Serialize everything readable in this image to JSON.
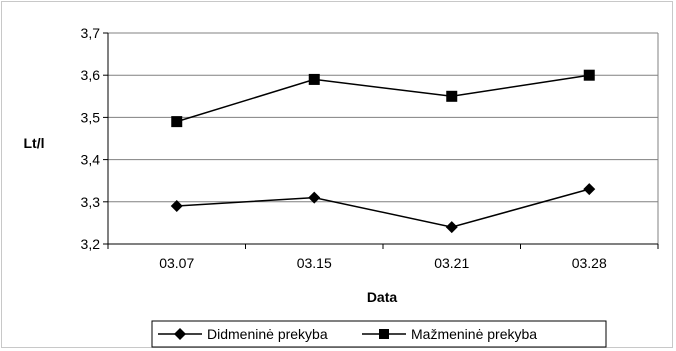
{
  "chart_data": {
    "type": "line",
    "categories": [
      "03.07",
      "03.15",
      "03.21",
      "03.28"
    ],
    "series": [
      {
        "name": "Didmeninė prekyba",
        "marker": "diamond",
        "values": [
          3.29,
          3.31,
          3.24,
          3.33
        ]
      },
      {
        "name": "Mažmeninė prekyba",
        "marker": "square",
        "values": [
          3.49,
          3.59,
          3.55,
          3.6
        ]
      }
    ],
    "xlabel": "Data",
    "ylabel": "Lt/l",
    "ylim": [
      3.2,
      3.7
    ],
    "yticks": [
      "3,2",
      "3,3",
      "3,4",
      "3,5",
      "3,6",
      "3,7"
    ],
    "grid": true,
    "legend_position": "bottom",
    "colors": {
      "line": "#000000",
      "grid": "#808080",
      "border": "#c8c8c8"
    }
  }
}
